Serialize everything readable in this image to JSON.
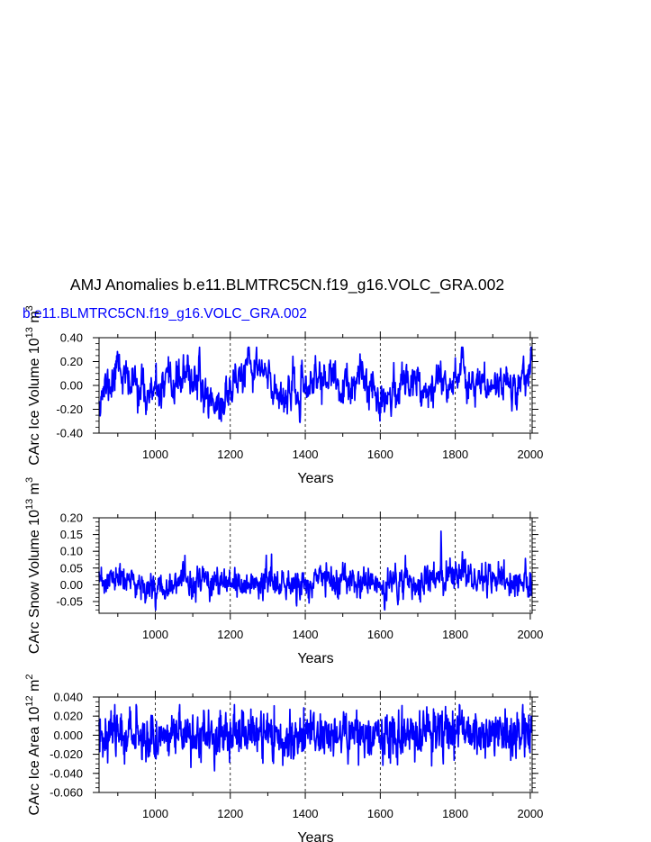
{
  "figure": {
    "title": "AMJ Anomalies b.e11.BLMTRC5CN.f19_g16.VOLC_GRA.002",
    "case_label": "b.e11.BLMTRC5CN.f19_g16.VOLC_GRA.002",
    "case_label_color": "#0000ff",
    "line_color": "#0000ff"
  },
  "chart_data": [
    {
      "type": "line",
      "title": "",
      "xlabel": "Years",
      "ylabel": "CArc Ice Volume 10",
      "ylabel_exp": "13",
      "ylabel_unit": " m",
      "ylabel_unit_exp": "3",
      "xlim": [
        850,
        2005
      ],
      "ylim": [
        -0.4,
        0.4
      ],
      "xticks": [
        1000,
        1200,
        1400,
        1600,
        1800,
        2000
      ],
      "xtick_labels": [
        "1000",
        "1200",
        "1400",
        "1600",
        "1800",
        "2000"
      ],
      "yticks": [
        -0.4,
        -0.2,
        0.0,
        0.2,
        0.4
      ],
      "ytick_labels": [
        "-0.40",
        "-0.20",
        "0.00",
        "0.20",
        "0.40"
      ],
      "ref_lines_x": [
        1000,
        1200,
        1400,
        1600,
        1800,
        2000
      ],
      "series": [
        {
          "name": "ice_volume",
          "x_start": 850,
          "x_step": 1,
          "gen": {
            "seed": 11,
            "std": 0.085,
            "ar": 0.55,
            "min": -0.31,
            "max": 0.32
          },
          "anchors": [
            [
              850,
              -0.05
            ],
            [
              880,
              0.0
            ],
            [
              895,
              0.1
            ],
            [
              900,
              0.3
            ],
            [
              910,
              0.12
            ],
            [
              930,
              0.0
            ],
            [
              950,
              0.03
            ],
            [
              975,
              -0.08
            ],
            [
              1000,
              -0.08
            ],
            [
              1030,
              -0.04
            ],
            [
              1060,
              0.05
            ],
            [
              1090,
              0.06
            ],
            [
              1110,
              0.08
            ],
            [
              1130,
              -0.08
            ],
            [
              1150,
              -0.1
            ],
            [
              1175,
              -0.2
            ],
            [
              1200,
              0.0
            ],
            [
              1230,
              0.08
            ],
            [
              1250,
              0.12
            ],
            [
              1270,
              0.15
            ],
            [
              1290,
              0.1
            ],
            [
              1310,
              -0.02
            ],
            [
              1340,
              -0.06
            ],
            [
              1370,
              -0.07
            ],
            [
              1390,
              -0.12
            ],
            [
              1410,
              0.02
            ],
            [
              1440,
              0.07
            ],
            [
              1470,
              0.05
            ],
            [
              1500,
              -0.04
            ],
            [
              1520,
              -0.06
            ],
            [
              1550,
              0.06
            ],
            [
              1580,
              -0.02
            ],
            [
              1600,
              -0.05
            ],
            [
              1620,
              -0.1
            ],
            [
              1650,
              -0.02
            ],
            [
              1680,
              0.06
            ],
            [
              1700,
              0.08
            ],
            [
              1720,
              -0.04
            ],
            [
              1750,
              0.06
            ],
            [
              1780,
              0.02
            ],
            [
              1800,
              0.1
            ],
            [
              1815,
              0.22
            ],
            [
              1830,
              0.02
            ],
            [
              1860,
              0.03
            ],
            [
              1890,
              -0.02
            ],
            [
              1910,
              0.02
            ],
            [
              1930,
              0.06
            ],
            [
              1950,
              -0.05
            ],
            [
              1970,
              0.05
            ],
            [
              1990,
              0.12
            ],
            [
              2005,
              0.16
            ]
          ]
        }
      ]
    },
    {
      "type": "line",
      "title": "",
      "xlabel": "Years",
      "ylabel": "CArc Snow Volume 10",
      "ylabel_exp": "13",
      "ylabel_unit": " m",
      "ylabel_unit_exp": "3",
      "xlim": [
        850,
        2005
      ],
      "ylim": [
        -0.085,
        0.2
      ],
      "xticks": [
        1000,
        1200,
        1400,
        1600,
        1800,
        2000
      ],
      "xtick_labels": [
        "1000",
        "1200",
        "1400",
        "1600",
        "1800",
        "2000"
      ],
      "yticks": [
        -0.05,
        0.0,
        0.05,
        0.1,
        0.15,
        0.2
      ],
      "ytick_labels": [
        "-0.05",
        "0.00",
        "0.05",
        "0.10",
        "0.15",
        "0.20"
      ],
      "ref_lines_x": [
        1000,
        1200,
        1400,
        1600,
        1800,
        2000
      ],
      "series": [
        {
          "name": "snow_volume",
          "x_start": 850,
          "x_step": 1,
          "gen": {
            "seed": 23,
            "std": 0.022,
            "ar": 0.4,
            "min": -0.075,
            "max": 0.1
          },
          "spikes": [
            [
              1762,
              0.16
            ],
            [
              1763,
              0.11
            ],
            [
              1761,
              0.06
            ]
          ],
          "anchors": [
            [
              850,
              0.0
            ],
            [
              900,
              0.02
            ],
            [
              950,
              0.0
            ],
            [
              1000,
              -0.01
            ],
            [
              1050,
              0.01
            ],
            [
              1100,
              0.0
            ],
            [
              1150,
              0.01
            ],
            [
              1200,
              -0.01
            ],
            [
              1250,
              0.0
            ],
            [
              1300,
              0.02
            ],
            [
              1350,
              -0.01
            ],
            [
              1400,
              0.0
            ],
            [
              1450,
              0.02
            ],
            [
              1500,
              0.0
            ],
            [
              1550,
              0.01
            ],
            [
              1600,
              -0.01
            ],
            [
              1650,
              0.01
            ],
            [
              1700,
              0.0
            ],
            [
              1750,
              0.02
            ],
            [
              1800,
              0.03
            ],
            [
              1850,
              0.02
            ],
            [
              1900,
              0.03
            ],
            [
              1950,
              0.0
            ],
            [
              2005,
              0.01
            ]
          ]
        }
      ]
    },
    {
      "type": "line",
      "title": "",
      "xlabel": "Years",
      "ylabel": "CArc Ice Area 10",
      "ylabel_exp": "12",
      "ylabel_unit": " m",
      "ylabel_unit_exp": "2",
      "xlim": [
        850,
        2005
      ],
      "ylim": [
        -0.06,
        0.04
      ],
      "xticks": [
        1000,
        1200,
        1400,
        1600,
        1800,
        2000
      ],
      "xtick_labels": [
        "1000",
        "1200",
        "1400",
        "1600",
        "1800",
        "2000"
      ],
      "yticks": [
        -0.06,
        -0.04,
        -0.02,
        0.0,
        0.02,
        0.04
      ],
      "ytick_labels": [
        "-0.060",
        "-0.040",
        "-0.020",
        "0.000",
        "0.020",
        "0.040"
      ],
      "ref_lines_x": [
        1000,
        1200,
        1400,
        1600,
        1800,
        2000
      ],
      "series": [
        {
          "name": "ice_area",
          "x_start": 850,
          "x_step": 1,
          "gen": {
            "seed": 37,
            "std": 0.012,
            "ar": 0.25,
            "min": -0.044,
            "max": 0.032
          },
          "anchors": [
            [
              850,
              0.0
            ],
            [
              900,
              0.006
            ],
            [
              950,
              0.0
            ],
            [
              1000,
              -0.002
            ],
            [
              1050,
              0.002
            ],
            [
              1100,
              0.0
            ],
            [
              1150,
              0.001
            ],
            [
              1200,
              0.0
            ],
            [
              1250,
              0.002
            ],
            [
              1300,
              0.001
            ],
            [
              1350,
              -0.004
            ],
            [
              1400,
              0.0
            ],
            [
              1450,
              0.003
            ],
            [
              1500,
              0.0
            ],
            [
              1550,
              0.002
            ],
            [
              1600,
              -0.001
            ],
            [
              1650,
              0.001
            ],
            [
              1700,
              0.0
            ],
            [
              1750,
              0.002
            ],
            [
              1800,
              0.005
            ],
            [
              1820,
              0.01
            ],
            [
              1850,
              0.002
            ],
            [
              1900,
              0.003
            ],
            [
              1950,
              0.0
            ],
            [
              2005,
              0.0
            ]
          ]
        }
      ]
    }
  ]
}
